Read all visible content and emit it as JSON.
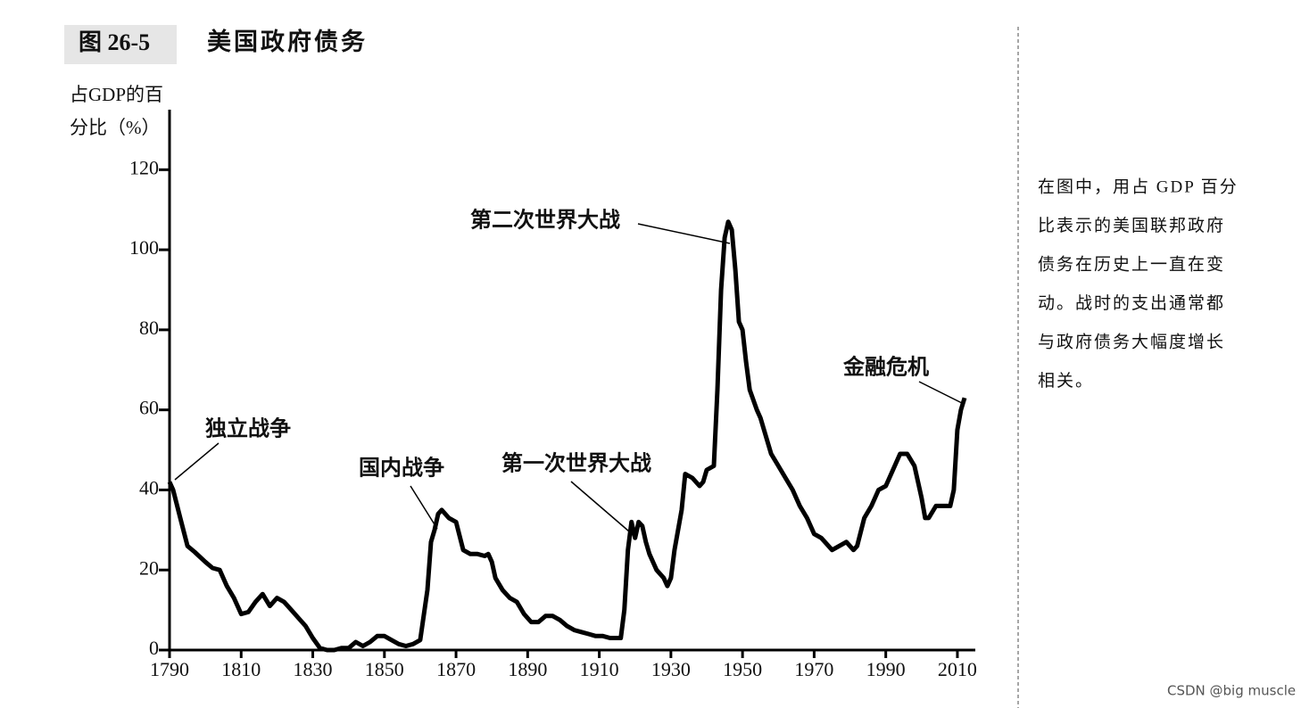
{
  "figure_label": "图 26-5",
  "chart_data": {
    "type": "line",
    "title": "美国政府债务",
    "y_label": [
      "占GDP的百",
      "分比（%）"
    ],
    "x": [
      1790,
      1791,
      1793,
      1795,
      1797,
      1800,
      1802,
      1804,
      1806,
      1808,
      1810,
      1812,
      1814,
      1816,
      1818,
      1820,
      1822,
      1824,
      1826,
      1828,
      1830,
      1832,
      1834,
      1836,
      1838,
      1840,
      1842,
      1844,
      1846,
      1848,
      1850,
      1852,
      1854,
      1856,
      1858,
      1860,
      1862,
      1863,
      1864,
      1865,
      1866,
      1868,
      1870,
      1872,
      1874,
      1876,
      1878,
      1879,
      1880,
      1881,
      1883,
      1885,
      1887,
      1889,
      1891,
      1893,
      1895,
      1897,
      1899,
      1901,
      1903,
      1905,
      1907,
      1909,
      1911,
      1913,
      1916,
      1917,
      1918,
      1919,
      1920,
      1921,
      1922,
      1923,
      1924,
      1926,
      1928,
      1929,
      1930,
      1931,
      1933,
      1934,
      1936,
      1938,
      1939,
      1940,
      1942,
      1943,
      1944,
      1945,
      1946,
      1947,
      1948,
      1949,
      1950,
      1951,
      1952,
      1954,
      1955,
      1957,
      1958,
      1960,
      1962,
      1964,
      1966,
      1968,
      1970,
      1972,
      1974,
      1975,
      1977,
      1979,
      1981,
      1982,
      1984,
      1986,
      1988,
      1990,
      1992,
      1994,
      1996,
      1998,
      2000,
      2001,
      2002,
      2004,
      2006,
      2008,
      2009,
      2010,
      2011,
      2012
    ],
    "series": [
      {
        "name": "美国政府债务",
        "color": "#000000",
        "values": [
          42,
          40,
          33,
          26,
          24.5,
          22,
          20.5,
          20,
          16,
          13,
          9,
          9.5,
          12,
          14,
          11,
          13,
          12,
          10,
          8,
          6,
          3,
          0.5,
          0,
          0,
          0.5,
          0.5,
          2,
          1,
          2,
          3.5,
          3.5,
          2.5,
          1.5,
          1,
          1.5,
          2.5,
          15,
          27,
          30,
          34,
          35,
          33,
          32,
          25,
          24,
          24,
          23.5,
          24,
          22,
          18,
          15,
          13,
          12,
          9,
          7,
          7,
          8.5,
          8.5,
          7.5,
          6,
          5,
          4.5,
          4,
          3.5,
          3.5,
          3,
          3,
          10,
          25,
          32,
          28,
          32,
          31,
          27,
          24,
          20,
          18,
          16,
          18,
          25,
          35,
          44,
          43,
          41,
          42,
          45,
          46,
          65,
          90,
          103,
          107,
          105,
          95,
          82,
          80,
          72,
          65,
          60,
          58,
          52,
          49,
          46,
          43,
          40,
          36,
          33,
          29,
          28,
          26,
          25,
          26,
          27,
          25,
          26,
          33,
          36,
          40,
          41,
          45,
          49,
          49,
          46,
          38,
          33,
          33,
          36,
          36,
          36,
          40,
          55,
          60,
          63
        ]
      }
    ],
    "xlim": [
      1790,
      2015
    ],
    "ylim": [
      0,
      135
    ],
    "xticks": [
      1790,
      1810,
      1830,
      1850,
      1870,
      1890,
      1910,
      1930,
      1950,
      1970,
      1990,
      2010
    ],
    "yticks": [
      0,
      20,
      40,
      60,
      80,
      100,
      120
    ],
    "annotations": [
      "独立战争",
      "国内战争",
      "第一次世界大战",
      "第二次世界大战",
      "金融危机"
    ]
  },
  "sidebar": [
    "在图中，用占 GDP 百分",
    "比表示的美国联邦政府",
    "债务在历史上一直在变",
    "动。战时的支出通常都",
    "与政府债务大幅度增长",
    "相关。"
  ],
  "watermark": "CSDN @big muscle"
}
